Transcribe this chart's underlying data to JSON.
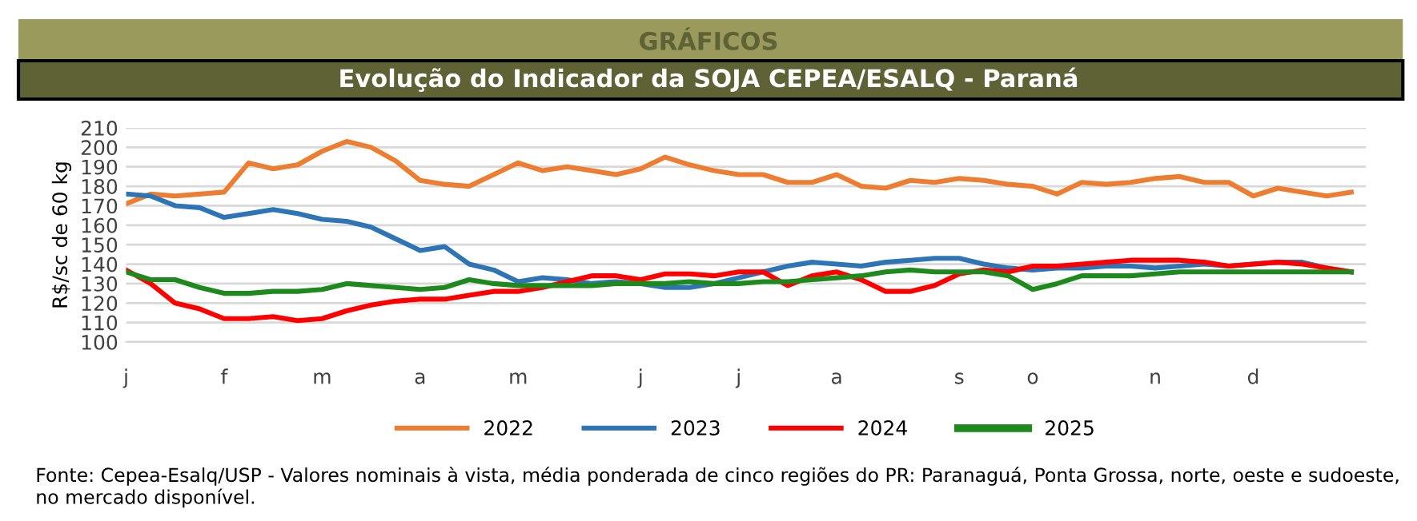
{
  "chart_data": {
    "type": "line",
    "title": "GRÁFICOS",
    "subtitle": "Evolução do Indicador da SOJA CEPEA/ESALQ - Paraná",
    "ylabel": "R$/sc de 60 kg",
    "annotations": [
      "Fonte: Cepea-Esalq/USP - Valores nominais à vista, média ponderada de cinco regiões do PR: Paranaguá, Ponta Grossa, norte, oeste e sudoeste, no mercado disponível."
    ],
    "categories": [
      "j",
      null,
      null,
      null,
      "f",
      null,
      null,
      null,
      "m",
      null,
      null,
      null,
      "a",
      null,
      null,
      null,
      "m",
      null,
      null,
      null,
      null,
      "j",
      null,
      null,
      null,
      "j",
      null,
      null,
      null,
      "a",
      null,
      null,
      null,
      null,
      "s",
      null,
      null,
      "o",
      null,
      null,
      null,
      null,
      "n",
      null,
      null,
      null,
      "d",
      null,
      null,
      null,
      null
    ],
    "ylim": [
      100,
      210
    ],
    "yticks": [
      100,
      110,
      120,
      130,
      140,
      150,
      160,
      170,
      180,
      190,
      200,
      210
    ],
    "grid": "y",
    "legend": "bottom",
    "marker": "none",
    "line_style": "solid",
    "series": [
      {
        "name": "2022",
        "color": "#ed7d31",
        "values": [
          171,
          176,
          175,
          176,
          177,
          192,
          189,
          191,
          198,
          203,
          200,
          193,
          183,
          181,
          180,
          186,
          192,
          188,
          190,
          188,
          186,
          189,
          195,
          191,
          188,
          186,
          186,
          182,
          182,
          186,
          180,
          179,
          183,
          182,
          184,
          183,
          181,
          180,
          176,
          182,
          181,
          182,
          184,
          185,
          182,
          182,
          175,
          179,
          177,
          175,
          177
        ]
      },
      {
        "name": "2023",
        "color": "#2e75b6",
        "values": [
          176,
          175,
          170,
          169,
          164,
          166,
          168,
          166,
          163,
          162,
          159,
          153,
          147,
          149,
          140,
          137,
          131,
          133,
          132,
          130,
          131,
          130,
          128,
          128,
          130,
          133,
          136,
          139,
          141,
          140,
          139,
          141,
          142,
          143,
          143,
          140,
          138,
          137,
          138,
          138,
          139,
          139,
          138,
          139,
          140,
          139,
          140,
          141,
          141,
          138,
          136
        ]
      },
      {
        "name": "2024",
        "color": "#ff0000",
        "values": [
          137,
          130,
          120,
          117,
          112,
          112,
          113,
          111,
          112,
          116,
          119,
          121,
          122,
          122,
          124,
          126,
          126,
          128,
          131,
          134,
          134,
          132,
          135,
          135,
          134,
          136,
          136,
          129,
          134,
          136,
          132,
          126,
          126,
          129,
          135,
          137,
          136,
          139,
          139,
          140,
          141,
          142,
          142,
          142,
          141,
          139,
          140,
          141,
          140,
          138,
          136
        ]
      },
      {
        "name": "2025",
        "color": "#1e8a1e",
        "values": [
          136,
          132,
          132,
          128,
          125,
          125,
          126,
          126,
          127,
          130,
          129,
          128,
          127,
          128,
          132,
          130,
          129,
          129,
          129,
          129,
          130,
          130,
          130,
          131,
          130,
          130,
          131,
          131,
          132,
          133,
          134,
          136,
          137,
          136,
          136,
          136,
          134,
          127,
          130,
          134,
          134,
          134,
          135,
          136,
          136,
          136,
          136,
          136,
          136,
          136,
          136
        ]
      }
    ]
  }
}
